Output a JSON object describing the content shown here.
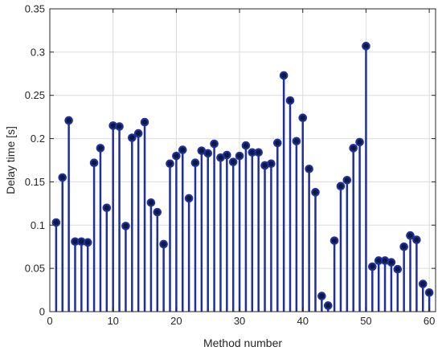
{
  "chart_data": {
    "type": "stem",
    "title": "",
    "xlabel": "Method number",
    "ylabel": "Delay time [s]",
    "xlim": [
      0,
      61
    ],
    "ylim": [
      0,
      0.35
    ],
    "xticks": [
      0,
      10,
      20,
      30,
      40,
      50,
      60
    ],
    "yticks": [
      0,
      0.05,
      0.1,
      0.15,
      0.2,
      0.25,
      0.3,
      0.35
    ],
    "xtick_labels": [
      "0",
      "10",
      "20",
      "30",
      "40",
      "50",
      "60"
    ],
    "ytick_labels": [
      "0",
      "0.05",
      "0.1",
      "0.15",
      "0.2",
      "0.25",
      "0.3",
      "0.35"
    ],
    "grid": true,
    "colors": {
      "stem": "#1f2f9f",
      "marker_edge": "#1f2f9f",
      "marker_center": "#0a1a3a",
      "grid": "#dcdcdc",
      "axis": "#262626"
    },
    "x": [
      1,
      2,
      3,
      4,
      5,
      6,
      7,
      8,
      9,
      10,
      11,
      12,
      13,
      14,
      15,
      16,
      17,
      18,
      19,
      20,
      21,
      22,
      23,
      24,
      25,
      26,
      27,
      28,
      29,
      30,
      31,
      32,
      33,
      34,
      35,
      36,
      37,
      38,
      39,
      40,
      41,
      42,
      43,
      44,
      45,
      46,
      47,
      48,
      49,
      50,
      51,
      52,
      53,
      54,
      55,
      56,
      57,
      58,
      59,
      60
    ],
    "values": [
      0.103,
      0.155,
      0.221,
      0.081,
      0.081,
      0.08,
      0.172,
      0.189,
      0.12,
      0.215,
      0.214,
      0.099,
      0.201,
      0.206,
      0.219,
      0.126,
      0.115,
      0.078,
      0.171,
      0.18,
      0.187,
      0.131,
      0.172,
      0.186,
      0.183,
      0.194,
      0.178,
      0.181,
      0.173,
      0.18,
      0.192,
      0.184,
      0.184,
      0.169,
      0.171,
      0.195,
      0.273,
      0.244,
      0.197,
      0.224,
      0.165,
      0.138,
      0.018,
      0.007,
      0.082,
      0.145,
      0.152,
      0.189,
      0.196,
      0.307,
      0.052,
      0.059,
      0.059,
      0.057,
      0.049,
      0.075,
      0.088,
      0.083,
      0.032,
      0.022
    ]
  }
}
